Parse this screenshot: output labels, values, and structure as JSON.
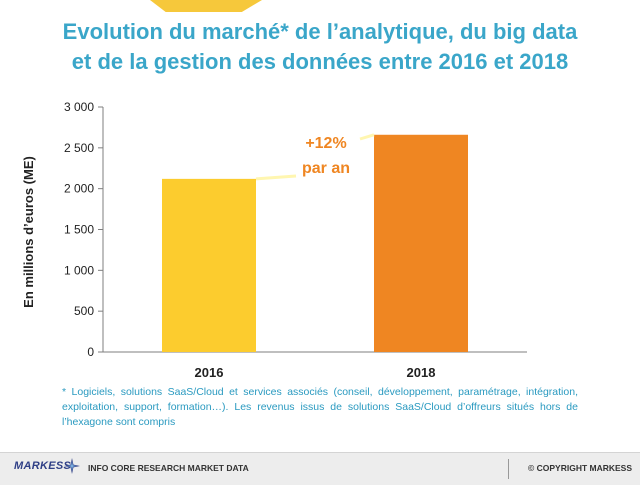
{
  "title": {
    "line1": "Evolution du marché* de l’analytique, du big data",
    "line2": "et de la gestion des données entre 2016 et 2018"
  },
  "chart_data": {
    "type": "bar",
    "categories": [
      "2016",
      "2018"
    ],
    "values": [
      2120,
      2660
    ],
    "colors": [
      "#fccc2e",
      "#ef8622"
    ],
    "ylabel": "En millions d’euros (ME)",
    "ylim": [
      0,
      3000
    ],
    "yticks": [
      0,
      500,
      1000,
      1500,
      2000,
      2500,
      3000
    ],
    "ytick_labels": [
      "0",
      "500",
      "1 000",
      "1 500",
      "2 000",
      "2 500",
      "3 000"
    ],
    "grid": false,
    "annotation": {
      "line1": "+12%",
      "line2": "par an",
      "color": "#ef8622"
    }
  },
  "footnote": "* Logiciels, solutions SaaS/Cloud et services associés (conseil, développement, paramétrage, intégration, exploitation, support, formation…). Les revenus issus de solutions SaaS/Cloud d’offreurs situés hors de l’hexagone sont compris",
  "footer": {
    "brand": "MARKESS",
    "left_text": "INFO CORE RESEARCH MARKET DATA",
    "right_text": "© COPYRIGHT MARKESS"
  }
}
